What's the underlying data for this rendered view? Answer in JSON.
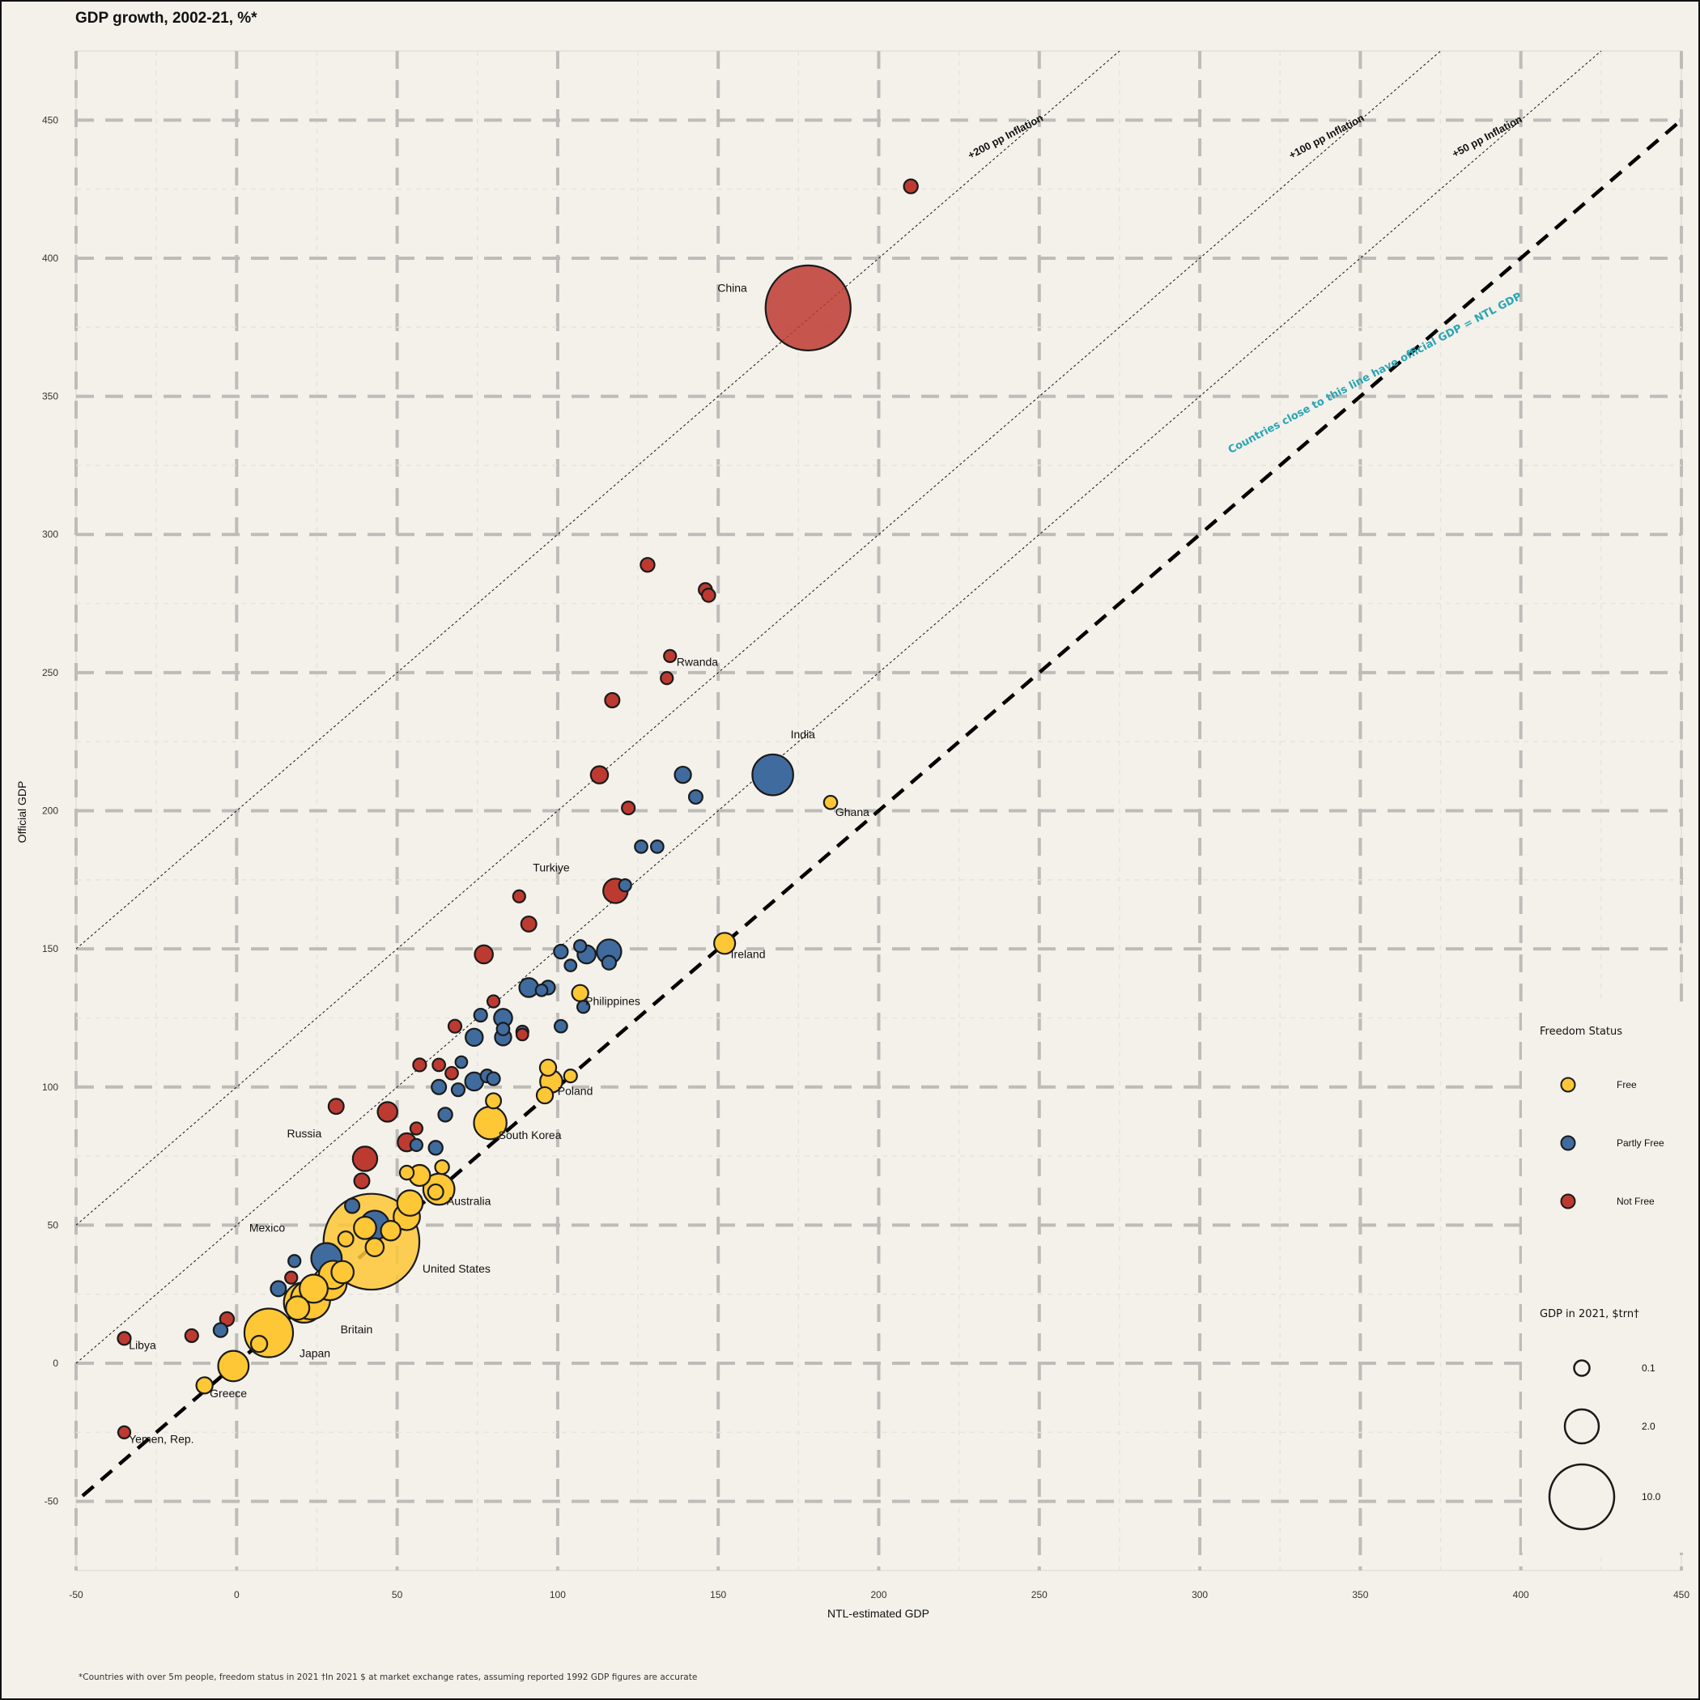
{
  "chart_data": {
    "type": "scatter",
    "title": "GDP growth, 2002-21, %*",
    "xlabel": "NTL-estimated GDP",
    "ylabel": "Official GDP",
    "xlim": [
      -50,
      450
    ],
    "ylim": [
      -75,
      475
    ],
    "xticks": [
      -50,
      0,
      50,
      100,
      150,
      200,
      250,
      300,
      350,
      400,
      450
    ],
    "yticks": [
      -50,
      0,
      50,
      100,
      150,
      200,
      250,
      300,
      350,
      400,
      450
    ],
    "grid": true,
    "footnote": "*Countries with over 5m people, freedom status in 2021 †In 2021 $ at market exchange rates, assuming reported 1992 GDP figures are accurate",
    "annotation": "Countries close to this line have official GDP = NTL GDP",
    "reference_lines": [
      {
        "label": "+200 pp Inflation",
        "offset": 200
      },
      {
        "label": "+100 pp Inflation",
        "offset": 100
      },
      {
        "label": "+50 pp Inflation",
        "offset": 50
      },
      {
        "label": "",
        "offset": 0
      }
    ],
    "colors": {
      "Free": "#fdc735",
      "Partly Free": "#3f6b9e",
      "Not Free": "#bd3a31"
    },
    "legend_freedom": {
      "title": "Freedom Status",
      "items": [
        "Free",
        "Partly Free",
        "Not Free"
      ],
      "position": "right"
    },
    "legend_size": {
      "title": "GDP in 2021, $trn†",
      "items": [
        {
          "label": "0.1",
          "gdp": 0.1
        },
        {
          "label": "2.0",
          "gdp": 2.0
        },
        {
          "label": "10.0",
          "gdp": 10.0
        }
      ]
    },
    "points": [
      {
        "name": "China",
        "x": 178,
        "y": 382,
        "status": "Not Free",
        "gdp": 17.7,
        "label_dx": -28,
        "label_dy": 16
      },
      {
        "name": "",
        "x": 210,
        "y": 426,
        "status": "Not Free",
        "gdp": 0.1
      },
      {
        "name": "",
        "x": 128,
        "y": 289,
        "status": "Not Free",
        "gdp": 0.1
      },
      {
        "name": "",
        "x": 146,
        "y": 280,
        "status": "Not Free",
        "gdp": 0.08
      },
      {
        "name": "",
        "x": 147,
        "y": 278,
        "status": "Not Free",
        "gdp": 0.08
      },
      {
        "name": "Rwanda",
        "x": 135,
        "y": 256,
        "status": "Not Free",
        "gdp": 0.05,
        "label_dx": 0,
        "label_dy": 9
      },
      {
        "name": "",
        "x": 134,
        "y": 248,
        "status": "Not Free",
        "gdp": 0.05
      },
      {
        "name": "",
        "x": 117,
        "y": 240,
        "status": "Not Free",
        "gdp": 0.12
      },
      {
        "name": "",
        "x": 113,
        "y": 213,
        "status": "Not Free",
        "gdp": 0.25
      },
      {
        "name": "",
        "x": 122,
        "y": 201,
        "status": "Not Free",
        "gdp": 0.07
      },
      {
        "name": "India",
        "x": 167,
        "y": 213,
        "status": "Partly Free",
        "gdp": 3.2,
        "label_dx": -22,
        "label_dy": 15
      },
      {
        "name": "",
        "x": 139,
        "y": 213,
        "status": "Partly Free",
        "gdp": 0.2
      },
      {
        "name": "",
        "x": 143,
        "y": 205,
        "status": "Partly Free",
        "gdp": 0.09
      },
      {
        "name": "Ghana",
        "x": 185,
        "y": 203,
        "status": "Free",
        "gdp": 0.08,
        "label_dx": 0,
        "label_dy": 3
      },
      {
        "name": "",
        "x": 126,
        "y": 187,
        "status": "Partly Free",
        "gdp": 0.06
      },
      {
        "name": "",
        "x": 131,
        "y": 187,
        "status": "Partly Free",
        "gdp": 0.06
      },
      {
        "name": "Turkiye",
        "x": 118,
        "y": 171,
        "status": "Not Free",
        "gdp": 0.8,
        "label_dx": -75,
        "label_dy": 16
      },
      {
        "name": "",
        "x": 121,
        "y": 173,
        "status": "Partly Free",
        "gdp": 0.05
      },
      {
        "name": "",
        "x": 88,
        "y": 169,
        "status": "Not Free",
        "gdp": 0.05
      },
      {
        "name": "",
        "x": 91,
        "y": 159,
        "status": "Not Free",
        "gdp": 0.15
      },
      {
        "name": "Ireland",
        "x": 152,
        "y": 152,
        "status": "Free",
        "gdp": 0.5,
        "label_dx": 0,
        "label_dy": 2
      },
      {
        "name": "",
        "x": 77,
        "y": 148,
        "status": "Not Free",
        "gdp": 0.3
      },
      {
        "name": "",
        "x": 101,
        "y": 149,
        "status": "Partly Free",
        "gdp": 0.1
      },
      {
        "name": "",
        "x": 107,
        "y": 151,
        "status": "Partly Free",
        "gdp": 0.05
      },
      {
        "name": "",
        "x": 109,
        "y": 148,
        "status": "Partly Free",
        "gdp": 0.3
      },
      {
        "name": "",
        "x": 116,
        "y": 149,
        "status": "Partly Free",
        "gdp": 0.8
      },
      {
        "name": "",
        "x": 116,
        "y": 145,
        "status": "Partly Free",
        "gdp": 0.1
      },
      {
        "name": "",
        "x": 104,
        "y": 144,
        "status": "Partly Free",
        "gdp": 0.04
      },
      {
        "name": "",
        "x": 91,
        "y": 136,
        "status": "Partly Free",
        "gdp": 0.35
      },
      {
        "name": "",
        "x": 95,
        "y": 135,
        "status": "Partly Free",
        "gdp": 0.04
      },
      {
        "name": "",
        "x": 97,
        "y": 136,
        "status": "Partly Free",
        "gdp": 0.1
      },
      {
        "name": "Philippines",
        "x": 107,
        "y": 134,
        "status": "Free",
        "gdp": 0.2,
        "label_dx": 0,
        "label_dy": 0
      },
      {
        "name": "",
        "x": 108,
        "y": 129,
        "status": "Partly Free",
        "gdp": 0.05
      },
      {
        "name": "",
        "x": 80,
        "y": 131,
        "status": "Not Free",
        "gdp": 0.05
      },
      {
        "name": "",
        "x": 76,
        "y": 126,
        "status": "Partly Free",
        "gdp": 0.07
      },
      {
        "name": "",
        "x": 83,
        "y": 125,
        "status": "Partly Free",
        "gdp": 0.3
      },
      {
        "name": "",
        "x": 68,
        "y": 122,
        "status": "Not Free",
        "gdp": 0.07
      },
      {
        "name": "",
        "x": 101,
        "y": 122,
        "status": "Partly Free",
        "gdp": 0.06
      },
      {
        "name": "",
        "x": 83,
        "y": 121,
        "status": "Partly Free",
        "gdp": 0.06
      },
      {
        "name": "",
        "x": 89,
        "y": 120,
        "status": "Partly Free",
        "gdp": 0.05
      },
      {
        "name": "",
        "x": 89,
        "y": 119,
        "status": "Not Free",
        "gdp": 0.04
      },
      {
        "name": "",
        "x": 74,
        "y": 118,
        "status": "Partly Free",
        "gdp": 0.25
      },
      {
        "name": "",
        "x": 83,
        "y": 118,
        "status": "Partly Free",
        "gdp": 0.2
      },
      {
        "name": "",
        "x": 57,
        "y": 108,
        "status": "Not Free",
        "gdp": 0.07
      },
      {
        "name": "",
        "x": 63,
        "y": 108,
        "status": "Not Free",
        "gdp": 0.06
      },
      {
        "name": "",
        "x": 70,
        "y": 109,
        "status": "Partly Free",
        "gdp": 0.04
      },
      {
        "name": "",
        "x": 67,
        "y": 105,
        "status": "Not Free",
        "gdp": 0.06
      },
      {
        "name": "",
        "x": 78,
        "y": 104,
        "status": "Partly Free",
        "gdp": 0.07
      },
      {
        "name": "",
        "x": 80,
        "y": 103,
        "status": "Partly Free",
        "gdp": 0.07
      },
      {
        "name": "",
        "x": 97,
        "y": 107,
        "status": "Free",
        "gdp": 0.2
      },
      {
        "name": "",
        "x": 104,
        "y": 104,
        "status": "Free",
        "gdp": 0.07
      },
      {
        "name": "Poland",
        "x": 98,
        "y": 102,
        "status": "Free",
        "gdp": 0.6,
        "label_dx": 0,
        "label_dy": 0
      },
      {
        "name": "",
        "x": 96,
        "y": 97,
        "status": "Free",
        "gdp": 0.2
      },
      {
        "name": "",
        "x": 63,
        "y": 100,
        "status": "Partly Free",
        "gdp": 0.12
      },
      {
        "name": "",
        "x": 69,
        "y": 99,
        "status": "Partly Free",
        "gdp": 0.07
      },
      {
        "name": "",
        "x": 74,
        "y": 102,
        "status": "Partly Free",
        "gdp": 0.3
      },
      {
        "name": "",
        "x": 31,
        "y": 93,
        "status": "Not Free",
        "gdp": 0.15
      },
      {
        "name": "",
        "x": 47,
        "y": 91,
        "status": "Not Free",
        "gdp": 0.4
      },
      {
        "name": "",
        "x": 65,
        "y": 90,
        "status": "Partly Free",
        "gdp": 0.1
      },
      {
        "name": "",
        "x": 80,
        "y": 95,
        "status": "Free",
        "gdp": 0.15
      },
      {
        "name": "South Korea",
        "x": 79,
        "y": 87,
        "status": "Free",
        "gdp": 1.8,
        "label_dx": 0,
        "label_dy": 0
      },
      {
        "name": "",
        "x": 56,
        "y": 85,
        "status": "Not Free",
        "gdp": 0.05
      },
      {
        "name": "Russia",
        "x": 53,
        "y": 80,
        "status": "Not Free",
        "gdp": 0.3,
        "label_dx": -55,
        "label_dy": -4
      },
      {
        "name": "",
        "x": 56,
        "y": 79,
        "status": "Partly Free",
        "gdp": 0.05
      },
      {
        "name": "",
        "x": 62,
        "y": 78,
        "status": "Partly Free",
        "gdp": 0.1
      },
      {
        "name": "",
        "x": 40,
        "y": 74,
        "status": "Not Free",
        "gdp": 0.8
      },
      {
        "name": "",
        "x": 64,
        "y": 71,
        "status": "Free",
        "gdp": 0.1
      },
      {
        "name": "",
        "x": 53,
        "y": 69,
        "status": "Free",
        "gdp": 0.1
      },
      {
        "name": "",
        "x": 57,
        "y": 68,
        "status": "Free",
        "gdp": 0.5
      },
      {
        "name": "",
        "x": 39,
        "y": 66,
        "status": "Not Free",
        "gdp": 0.15
      },
      {
        "name": "Australia",
        "x": 63,
        "y": 63,
        "status": "Free",
        "gdp": 1.6,
        "label_dx": 0,
        "label_dy": 0
      },
      {
        "name": "",
        "x": 62,
        "y": 62,
        "status": "Free",
        "gdp": 0.15
      },
      {
        "name": "",
        "x": 36,
        "y": 57,
        "status": "Partly Free",
        "gdp": 0.12
      },
      {
        "name": "",
        "x": 54,
        "y": 58,
        "status": "Free",
        "gdp": 0.9
      },
      {
        "name": "",
        "x": 53,
        "y": 53,
        "status": "Free",
        "gdp": 1.0
      },
      {
        "name": "Mexico",
        "x": 43,
        "y": 50,
        "status": "Partly Free",
        "gdp": 1.3,
        "label_dx": -115,
        "label_dy": 6
      },
      {
        "name": "",
        "x": 48,
        "y": 48,
        "status": "Free",
        "gdp": 0.4
      },
      {
        "name": "United States",
        "x": 42,
        "y": 44,
        "status": "Free",
        "gdp": 23.0,
        "label_dx": 0,
        "label_dy": 0
      },
      {
        "name": "",
        "x": 40,
        "y": 49,
        "status": "Free",
        "gdp": 0.6
      },
      {
        "name": "",
        "x": 43,
        "y": 42,
        "status": "Free",
        "gdp": 0.3
      },
      {
        "name": "",
        "x": 34,
        "y": 45,
        "status": "Free",
        "gdp": 0.15
      },
      {
        "name": "",
        "x": 28,
        "y": 38,
        "status": "Partly Free",
        "gdp": 1.5
      },
      {
        "name": "",
        "x": 18,
        "y": 37,
        "status": "Partly Free",
        "gdp": 0.05
      },
      {
        "name": "",
        "x": 33,
        "y": 33,
        "status": "Free",
        "gdp": 0.6
      },
      {
        "name": "",
        "x": 30,
        "y": 32,
        "status": "Free",
        "gdp": 1.2
      },
      {
        "name": "",
        "x": 29,
        "y": 29,
        "status": "Free",
        "gdp": 2.0
      },
      {
        "name": "",
        "x": 17,
        "y": 31,
        "status": "Not Free",
        "gdp": 0.05
      },
      {
        "name": "",
        "x": 13,
        "y": 27,
        "status": "Partly Free",
        "gdp": 0.15
      },
      {
        "name": "",
        "x": 24,
        "y": 27,
        "status": "Free",
        "gdp": 1.2
      },
      {
        "name": "Britain",
        "x": 21,
        "y": 22,
        "status": "Free",
        "gdp": 3.1,
        "label_dx": 30,
        "label_dy": 28
      },
      {
        "name": "",
        "x": 19,
        "y": 20,
        "status": "Free",
        "gdp": 0.7
      },
      {
        "name": "",
        "x": 23,
        "y": 23,
        "status": "Free",
        "gdp": 2.9
      },
      {
        "name": "",
        "x": -3,
        "y": 16,
        "status": "Not Free",
        "gdp": 0.1
      },
      {
        "name": "",
        "x": -5,
        "y": 12,
        "status": "Partly Free",
        "gdp": 0.1
      },
      {
        "name": "",
        "x": -14,
        "y": 10,
        "status": "Not Free",
        "gdp": 0.07
      },
      {
        "name": "Libya",
        "x": -35,
        "y": 9,
        "status": "Not Free",
        "gdp": 0.07,
        "label_dx": 0,
        "label_dy": 0
      },
      {
        "name": "",
        "x": 7,
        "y": 7,
        "status": "Free",
        "gdp": 0.2
      },
      {
        "name": "Japan",
        "x": 10,
        "y": 11,
        "status": "Free",
        "gdp": 4.9,
        "label_dx": 32,
        "label_dy": 42
      },
      {
        "name": "",
        "x": -1,
        "y": -1,
        "status": "Free",
        "gdp": 1.5
      },
      {
        "name": "Greece",
        "x": -10,
        "y": -8,
        "status": "Free",
        "gdp": 0.2,
        "label_dx": 0,
        "label_dy": 0
      },
      {
        "name": "Yemen, Rep.",
        "x": -35,
        "y": -25,
        "status": "Not Free",
        "gdp": 0.05,
        "label_dx": 0,
        "label_dy": 0
      }
    ]
  }
}
